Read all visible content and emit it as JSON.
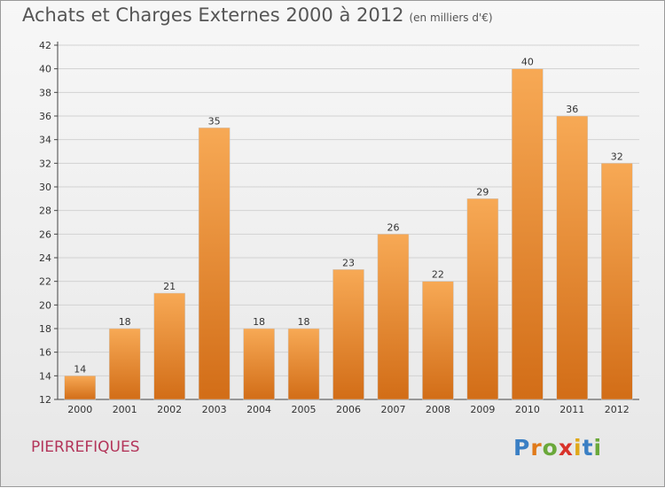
{
  "header": {
    "title": "Achats et Charges Externes 2000 à 2012",
    "unit": "(en milliers d'€)"
  },
  "footer": {
    "commune": "PIERREFIQUES",
    "logo_letters": [
      "P",
      "r",
      "o",
      "x",
      "i",
      "t",
      "i"
    ],
    "logo_colors": [
      "#3a7fc4",
      "#e07a1a",
      "#6aa83a",
      "#d8322a",
      "#e0a81a",
      "#3a7fc4",
      "#6aa83a"
    ]
  },
  "colors": {
    "bar_top": "#f7a955",
    "bar_bottom": "#d26d17",
    "grid": "#d2d2d2",
    "axis": "#444444"
  },
  "chart_data": {
    "type": "bar",
    "categories": [
      "2000",
      "2001",
      "2002",
      "2003",
      "2004",
      "2005",
      "2006",
      "2007",
      "2008",
      "2009",
      "2010",
      "2011",
      "2012"
    ],
    "values": [
      14,
      18,
      21,
      35,
      18,
      18,
      23,
      26,
      22,
      29,
      40,
      36,
      32
    ],
    "data_labels": [
      "14",
      "18",
      "21",
      "35",
      "18",
      "18",
      "23",
      "26",
      "22",
      "29",
      "40",
      "36",
      "32"
    ],
    "title": "Achats et Charges Externes 2000 à 2012",
    "xlabel": "",
    "ylabel": "",
    "ylim": [
      12,
      42
    ],
    "yticks": [
      "12",
      "14",
      "16",
      "18",
      "20",
      "22",
      "24",
      "26",
      "28",
      "30",
      "32",
      "34",
      "36",
      "38",
      "40",
      "42"
    ],
    "grid": true
  }
}
